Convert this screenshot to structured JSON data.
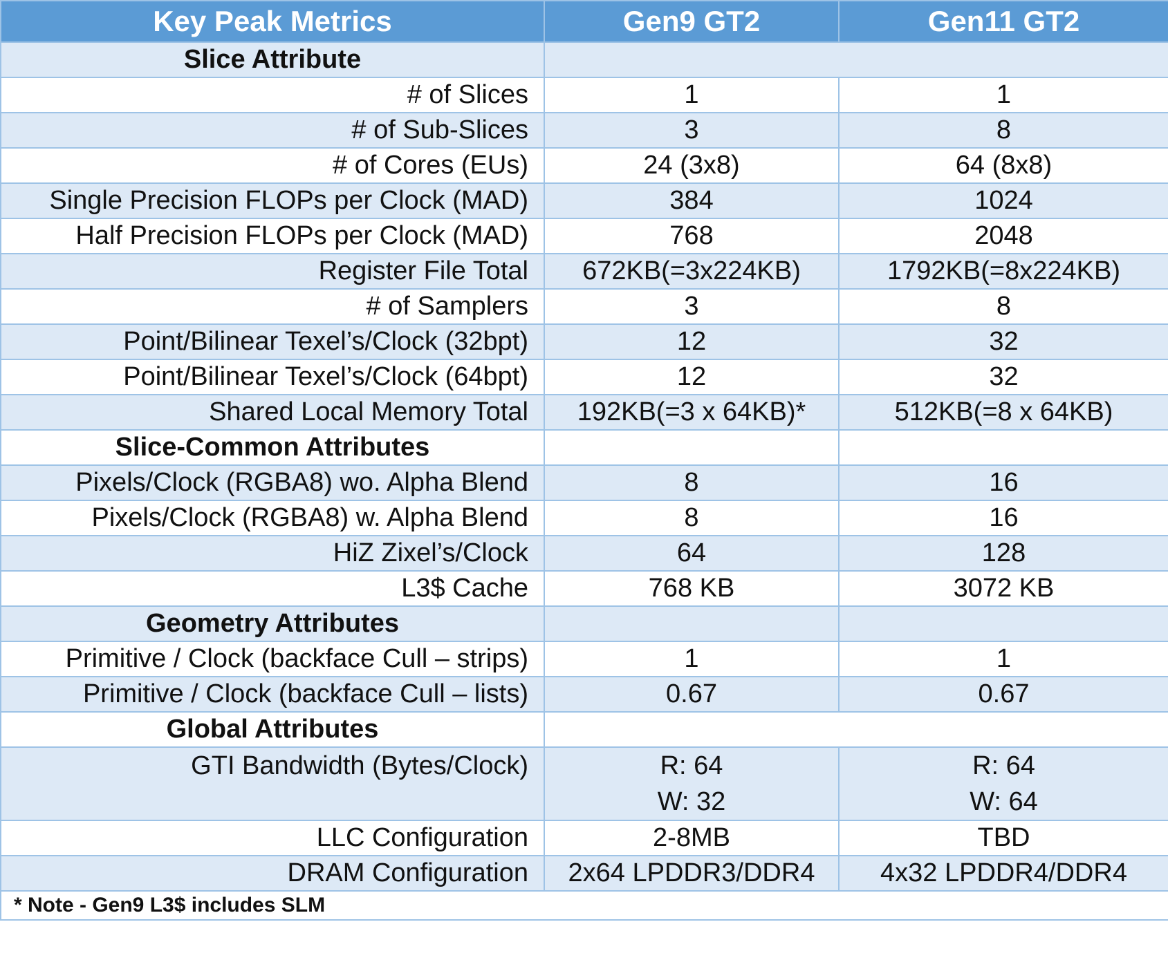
{
  "header": {
    "col1": "Key Peak Metrics",
    "col2": "Gen9 GT2",
    "col3": "Gen11 GT2"
  },
  "rows": [
    {
      "type": "section",
      "label": "Slice Attribute",
      "merged": true,
      "shade": true
    },
    {
      "type": "data",
      "label": "# of Slices",
      "gen9": "1",
      "gen11": "1",
      "shade": false
    },
    {
      "type": "data",
      "label": "# of Sub-Slices",
      "gen9": "3",
      "gen11": "8",
      "shade": true
    },
    {
      "type": "data",
      "label": "# of Cores (EUs)",
      "gen9": "24 (3x8)",
      "gen11": "64 (8x8)",
      "shade": false
    },
    {
      "type": "data",
      "label": "Single Precision FLOPs per Clock (MAD)",
      "gen9": "384",
      "gen11": "1024",
      "shade": true
    },
    {
      "type": "data",
      "label": "Half Precision FLOPs per Clock (MAD)",
      "gen9": "768",
      "gen11": "2048",
      "shade": false
    },
    {
      "type": "data",
      "label": "Register File Total",
      "gen9": "672KB(=3x224KB)",
      "gen11": "1792KB(=8x224KB)",
      "shade": true
    },
    {
      "type": "data",
      "label": "# of Samplers",
      "gen9": "3",
      "gen11": "8",
      "shade": false
    },
    {
      "type": "data",
      "label": "Point/Bilinear Texel’s/Clock (32bpt)",
      "gen9": "12",
      "gen11": "32",
      "shade": true
    },
    {
      "type": "data",
      "label": "Point/Bilinear Texel’s/Clock (64bpt)",
      "gen9": "12",
      "gen11": "32",
      "shade": false
    },
    {
      "type": "data",
      "label": "Shared Local Memory Total",
      "gen9": "192KB(=3 x 64KB)*",
      "gen11": "512KB(=8 x 64KB)",
      "shade": true
    },
    {
      "type": "section",
      "label": "Slice-Common Attributes",
      "merged": false,
      "shade": false
    },
    {
      "type": "data",
      "label": "Pixels/Clock (RGBA8) wo. Alpha Blend",
      "gen9": "8",
      "gen11": "16",
      "shade": true
    },
    {
      "type": "data",
      "label": "Pixels/Clock (RGBA8) w. Alpha Blend",
      "gen9": "8",
      "gen11": "16",
      "shade": false
    },
    {
      "type": "data",
      "label": "HiZ Zixel’s/Clock",
      "gen9": "64",
      "gen11": "128",
      "shade": true
    },
    {
      "type": "data",
      "label": "L3$ Cache",
      "gen9": "768 KB",
      "gen11": "3072 KB",
      "shade": false
    },
    {
      "type": "section",
      "label": "Geometry Attributes",
      "merged": false,
      "shade": true
    },
    {
      "type": "data",
      "label": "Primitive / Clock (backface Cull – strips)",
      "gen9": "1",
      "gen11": "1",
      "shade": false
    },
    {
      "type": "data",
      "label": "Primitive / Clock (backface Cull – lists)",
      "gen9": "0.67",
      "gen11": "0.67",
      "shade": true
    },
    {
      "type": "section",
      "label": "Global Attributes",
      "merged": true,
      "shade": false
    },
    {
      "type": "tall",
      "label": "GTI Bandwidth (Bytes/Clock)",
      "gen9": [
        "R: 64",
        "W: 32"
      ],
      "gen11": [
        "R: 64",
        "W: 64"
      ],
      "shade": true
    },
    {
      "type": "data",
      "label": "LLC Configuration",
      "gen9": "2-8MB",
      "gen11": "TBD",
      "shade": false
    },
    {
      "type": "data",
      "label": "DRAM Configuration",
      "gen9": "2x64 LPDDR3/DDR4",
      "gen11": "4x32 LPDDR4/DDR4",
      "shade": true
    }
  ],
  "note": "* Note - Gen9 L3$ includes SLM",
  "colors": {
    "header_bg": "#5b9bd5",
    "shade_bg": "#dde9f6",
    "border": "#9ec3e6"
  }
}
